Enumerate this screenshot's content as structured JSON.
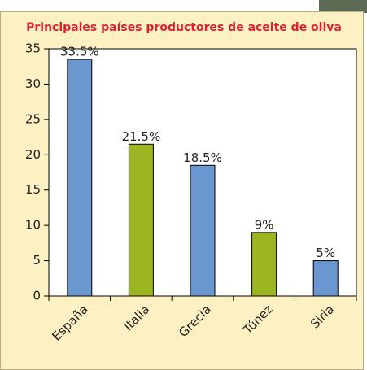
{
  "chart_data": {
    "type": "bar",
    "title": "Principales países productores de aceite de oliva",
    "categories": [
      "España",
      "Italia",
      "Grecia",
      "Túnez",
      "Siria"
    ],
    "values": [
      33.5,
      21.5,
      18.5,
      9,
      5
    ],
    "value_labels": [
      "33.5%",
      "21.5%",
      "18.5%",
      "9%",
      "5%"
    ],
    "colors": [
      "#6b97d0",
      "#9db520",
      "#6b97d0",
      "#9db520",
      "#6b97d0"
    ],
    "ylim": [
      0,
      35
    ],
    "yticks": [
      0,
      5,
      10,
      15,
      20,
      25,
      30,
      35
    ]
  }
}
